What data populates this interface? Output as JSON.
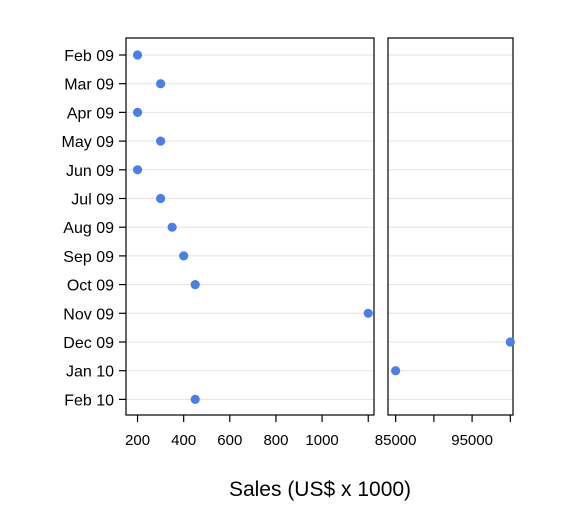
{
  "chart_data": {
    "type": "scatter",
    "xlabel": "Sales (US$ x 1000)",
    "categories": [
      "Feb 09",
      "Mar 09",
      "Apr 09",
      "May 09",
      "Jun 09",
      "Jul 09",
      "Aug 09",
      "Sep 09",
      "Oct 09",
      "Nov 09",
      "Dec 09",
      "Jan 10",
      "Feb 10"
    ],
    "values": [
      200,
      300,
      200,
      300,
      200,
      300,
      350,
      400,
      450,
      1200,
      100000,
      85000,
      450
    ],
    "axis_break": true,
    "panels": [
      {
        "xlim": [
          150,
          1225
        ],
        "ticks": [
          200,
          400,
          600,
          800,
          1000,
          1200
        ],
        "tick_labels": [
          "200",
          "400",
          "600",
          "800",
          "1000",
          ""
        ]
      },
      {
        "xlim": [
          84000,
          100350
        ],
        "ticks": [
          85000,
          90000,
          95000,
          100000
        ],
        "tick_labels": [
          "85000",
          "",
          "95000",
          ""
        ]
      }
    ],
    "grid": "horizontal",
    "point_color": "#4a7fe8"
  }
}
